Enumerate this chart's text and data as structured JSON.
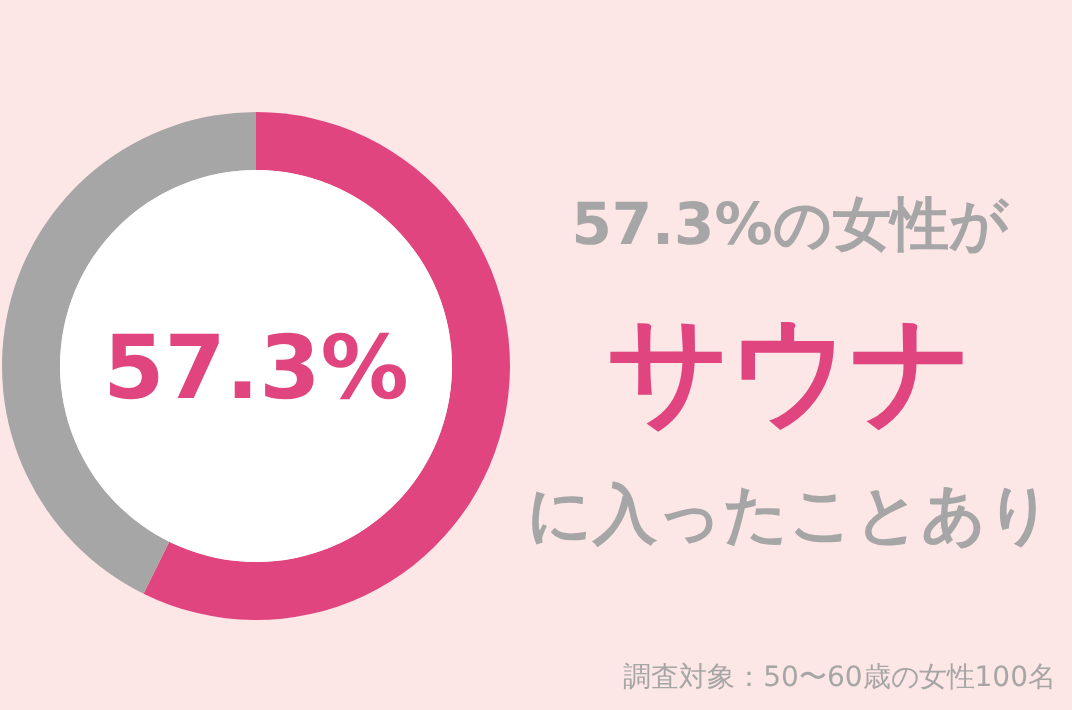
{
  "chart_data": {
    "type": "donut",
    "title": "57.3%の女性が",
    "subtitle": "サウナ",
    "categories": [
      null,
      null
    ],
    "values": [
      57.3,
      42.7
    ],
    "colors": [
      "#e0457f",
      "#a6a6a6"
    ],
    "value_labels": [
      "57.3%",
      null
    ],
    "annotations": [
      "に入ったことあり",
      "調査対象：50〜60歳の女性100名"
    ]
  }
}
